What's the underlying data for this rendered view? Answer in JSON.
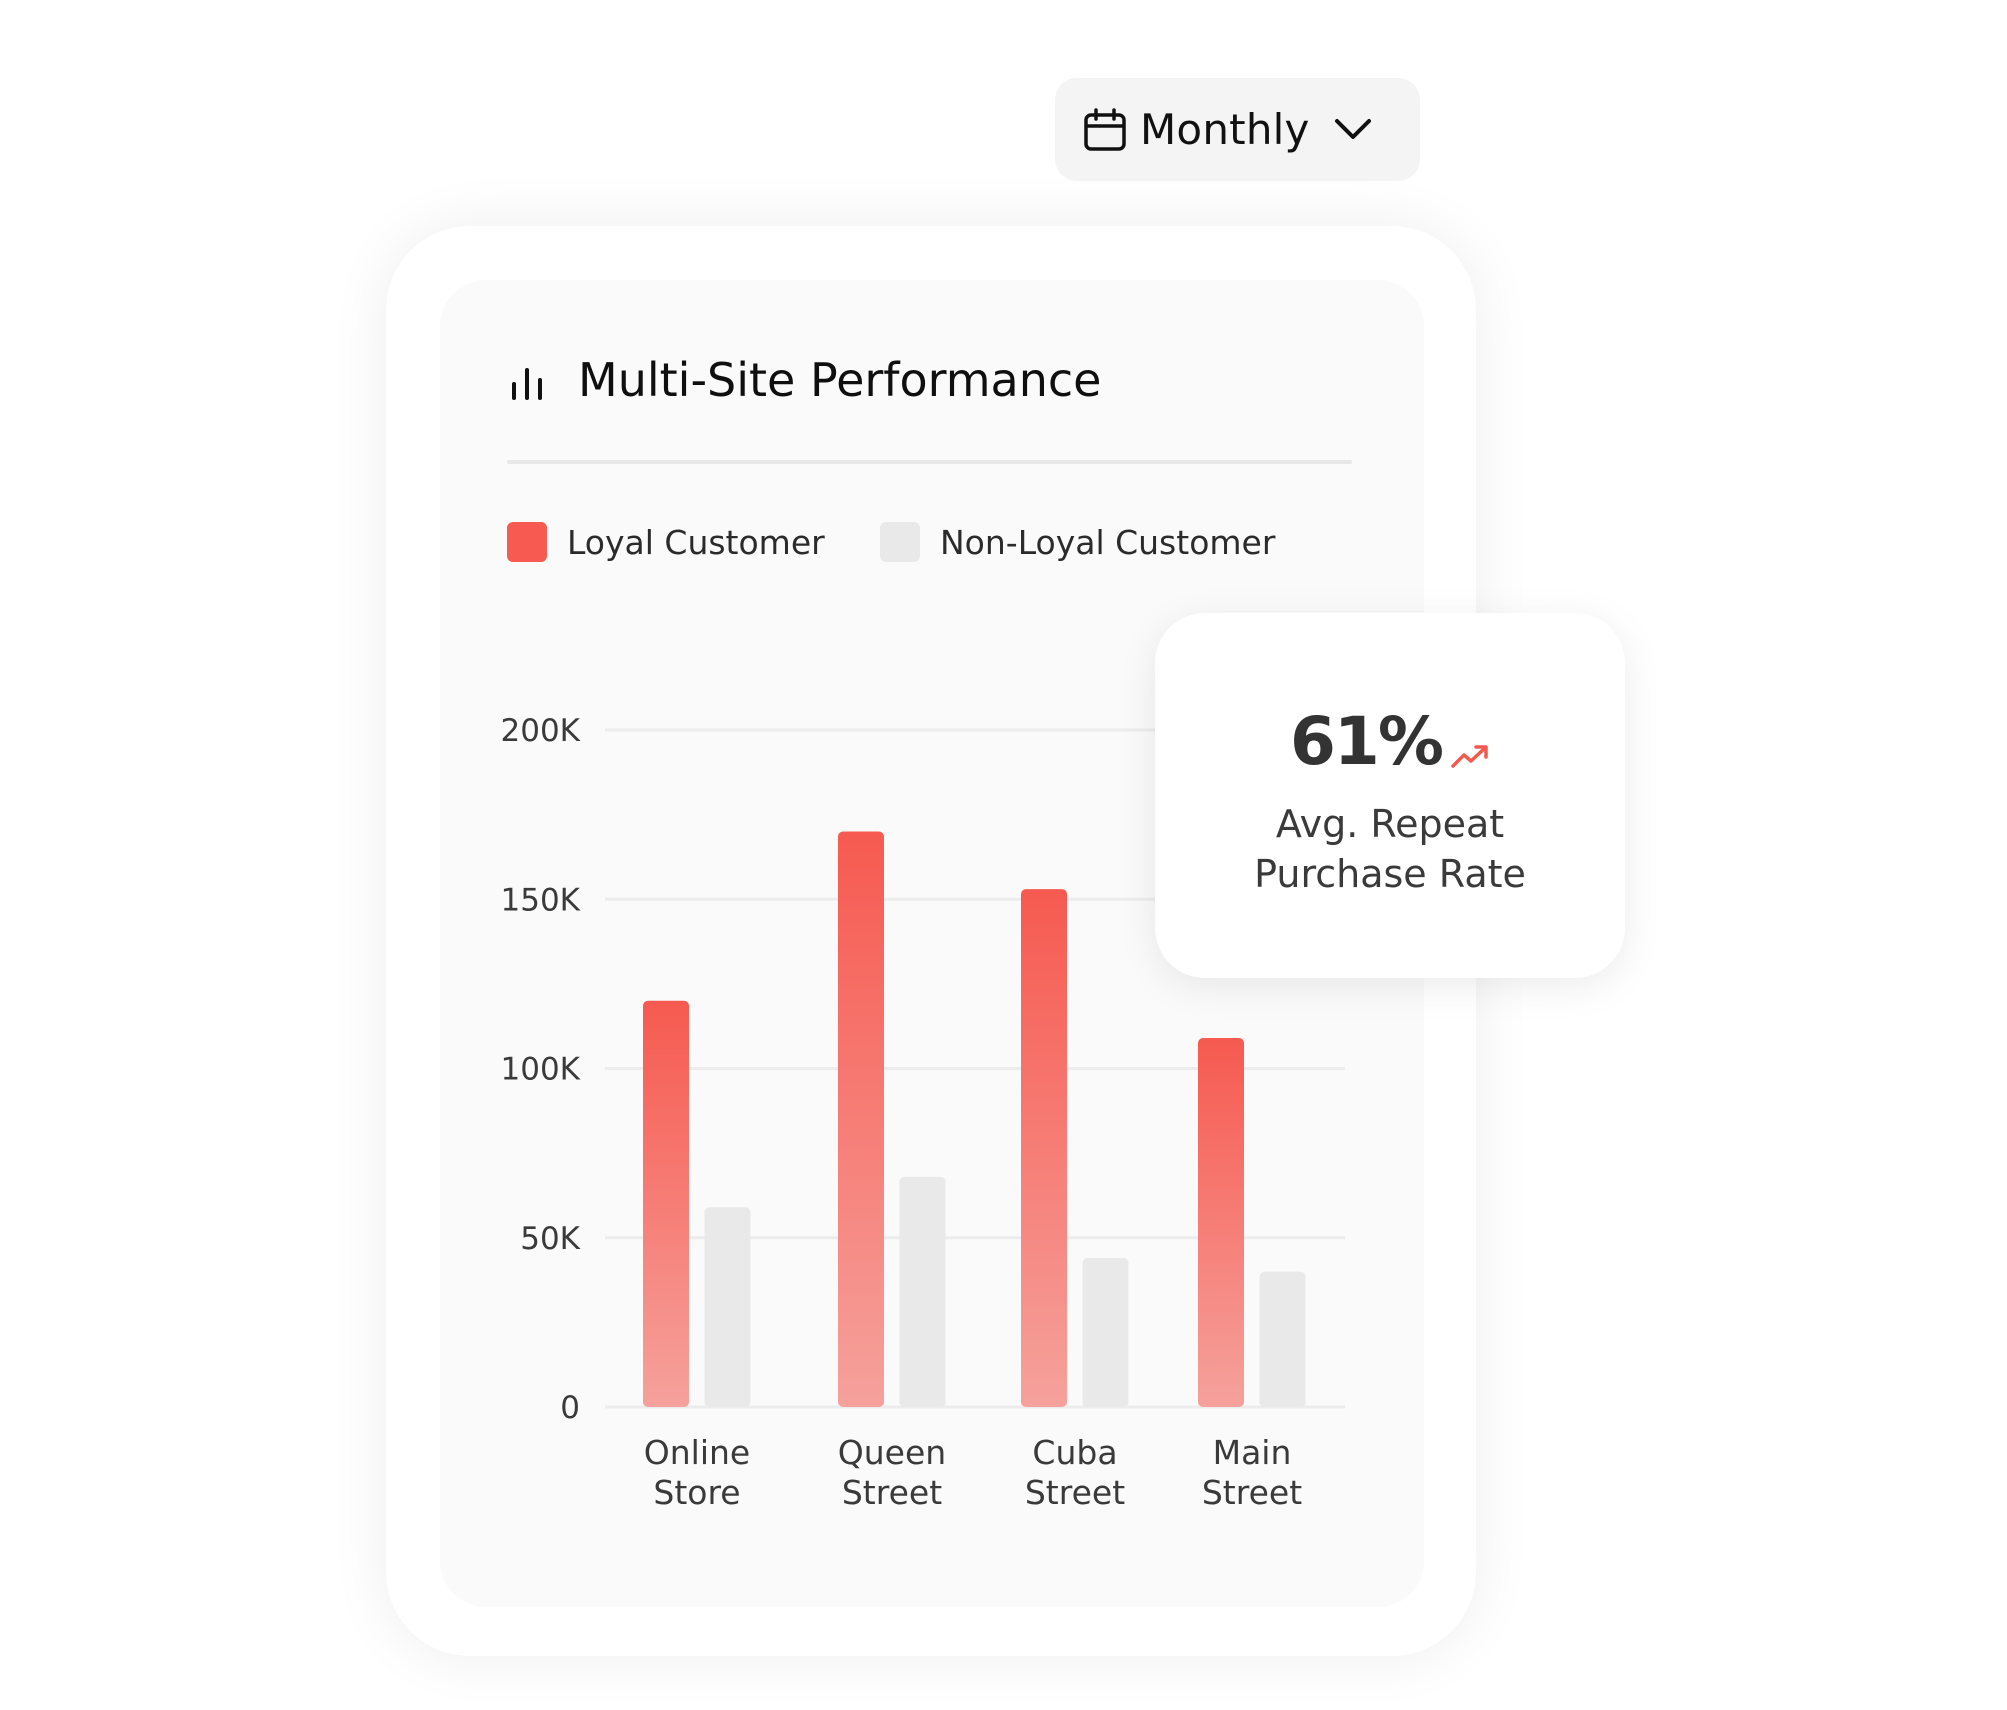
{
  "period_selector": {
    "label": "Monthly"
  },
  "panel": {
    "title": "Multi-Site Performance"
  },
  "kpi": {
    "value": "61%",
    "caption_line1": "Avg. Repeat",
    "caption_line2": "Purchase Rate",
    "trend_color": "#f05a4f"
  },
  "chart_data": {
    "type": "bar",
    "categories": [
      [
        "Online",
        "Store"
      ],
      [
        "Queen",
        "Street"
      ],
      [
        "Cuba",
        "Street"
      ],
      [
        "Main",
        "Street"
      ]
    ],
    "series": [
      {
        "name": "Loyal Customer",
        "values": [
          120000,
          170000,
          153000,
          109000
        ],
        "color": "#f65a50"
      },
      {
        "name": "Non-Loyal Customer",
        "values": [
          59000,
          68000,
          44000,
          40000
        ],
        "color": "#e9e9e9"
      }
    ],
    "yticks": [
      "0",
      "50K",
      "100K",
      "150K",
      "200K"
    ],
    "ylim": [
      0,
      200000
    ],
    "grid": true,
    "legend": "top-left",
    "xlabel": "",
    "ylabel": ""
  }
}
